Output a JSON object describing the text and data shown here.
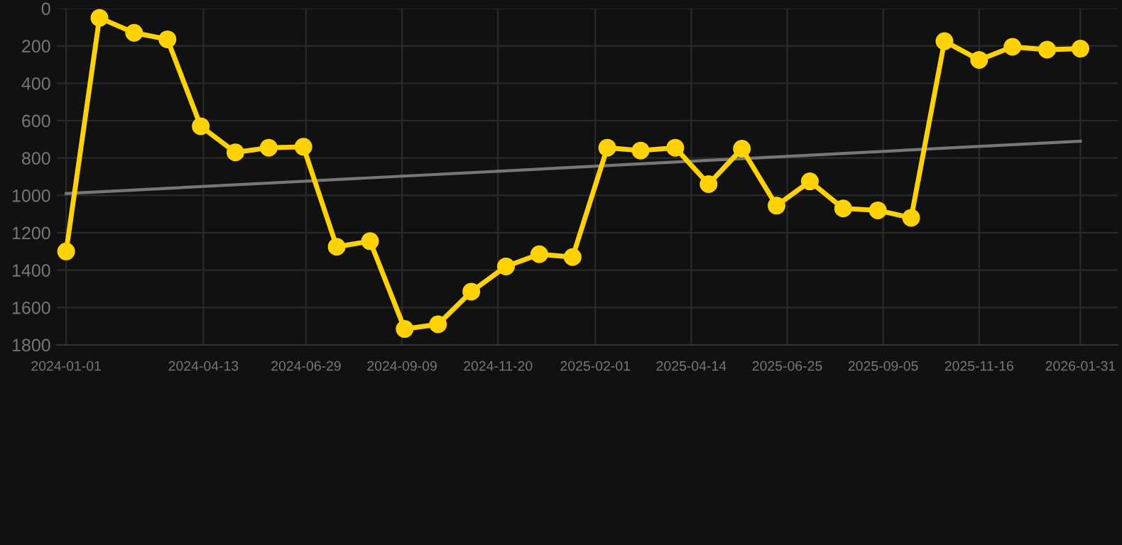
{
  "chart_data": {
    "type": "line",
    "x": [
      "2024-01-01",
      "2024-01-26",
      "2024-02-21",
      "2024-03-17",
      "2024-04-11",
      "2024-05-07",
      "2024-06-01",
      "2024-06-27",
      "2024-07-22",
      "2024-08-16",
      "2024-09-11",
      "2024-10-06",
      "2024-10-31",
      "2024-11-26",
      "2024-12-21",
      "2025-01-15",
      "2025-02-10",
      "2025-03-07",
      "2025-04-02",
      "2025-04-27",
      "2025-05-22",
      "2025-06-17",
      "2025-07-12",
      "2025-08-06",
      "2025-09-01",
      "2025-09-26",
      "2025-10-21",
      "2025-11-16",
      "2025-12-11",
      "2026-01-06",
      "2026-01-31"
    ],
    "series": [
      {
        "color": "#ffd200",
        "marker": "circle",
        "values": [
          1300,
          50,
          130,
          165,
          630,
          770,
          745,
          740,
          1275,
          1245,
          1715,
          1690,
          1515,
          1380,
          1315,
          1330,
          745,
          760,
          745,
          940,
          750,
          1055,
          925,
          1070,
          1080,
          1120,
          175,
          275,
          205,
          220,
          215
        ]
      },
      {
        "type": "line",
        "color": "#777777",
        "marker": "none",
        "x": [
          "2024-01-01",
          "2026-01-31"
        ],
        "values": [
          990,
          710
        ]
      }
    ],
    "ylim": [
      1800,
      0
    ],
    "yticks": [
      0,
      200,
      400,
      600,
      800,
      1000,
      1200,
      1400,
      1600,
      1800
    ],
    "xlim": [
      "2023-12-25",
      "2026-02-28"
    ],
    "xticks": [
      "2024-01-01",
      "2024-04-13",
      "2024-06-29",
      "2024-09-09",
      "2024-11-20",
      "2025-02-01",
      "2025-04-14",
      "2025-06-25",
      "2025-09-05",
      "2025-11-16",
      "2026-01-31"
    ],
    "grid": true
  }
}
